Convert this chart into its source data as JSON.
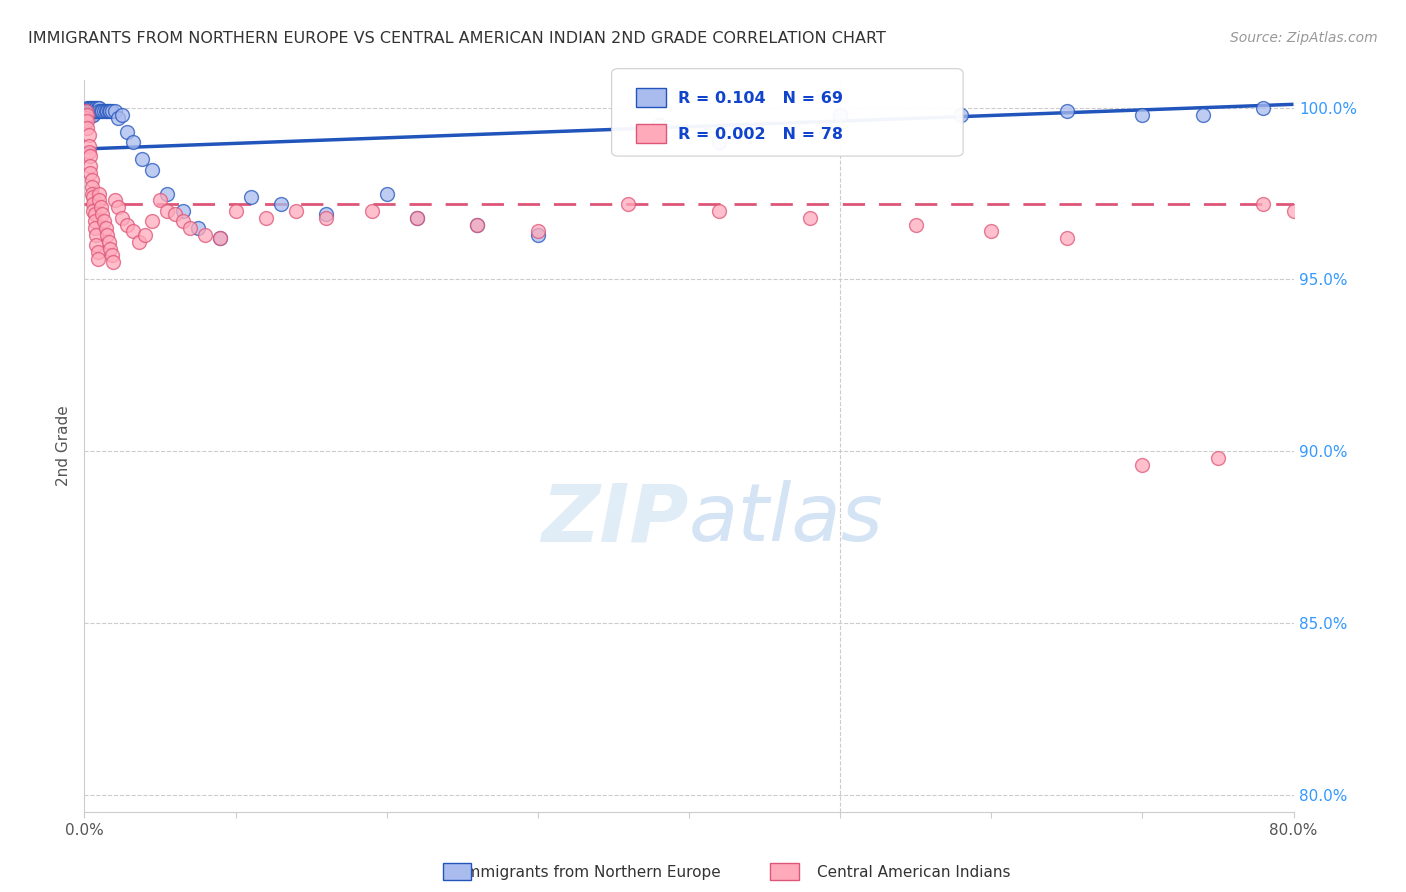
{
  "title": "IMMIGRANTS FROM NORTHERN EUROPE VS CENTRAL AMERICAN INDIAN 2ND GRADE CORRELATION CHART",
  "source": "Source: ZipAtlas.com",
  "ylabel": "2nd Grade",
  "legend_label1": "Immigrants from Northern Europe",
  "legend_label2": "Central American Indians",
  "R1": 0.104,
  "N1": 69,
  "R2": 0.002,
  "N2": 78,
  "color1": "#aabbee",
  "color2": "#ffaabb",
  "trendline1_color": "#2255bb",
  "trendline2_color": "#dd5577",
  "xlim": [
    0.0,
    0.8
  ],
  "ylim": [
    0.795,
    1.008
  ],
  "xticks": [
    0.0,
    0.1,
    0.2,
    0.3,
    0.4,
    0.5,
    0.6,
    0.7,
    0.8
  ],
  "yticks": [
    0.8,
    0.85,
    0.9,
    0.95,
    1.0
  ],
  "ytick_labels": [
    "80.0%",
    "85.0%",
    "90.0%",
    "95.0%",
    "100.0%"
  ],
  "xtick_labels": [
    "0.0%",
    "",
    "",
    "",
    "",
    "",
    "",
    "",
    "80.0%"
  ],
  "blue_trend_x0": 0.0,
  "blue_trend_y0": 0.988,
  "blue_trend_x1": 0.8,
  "blue_trend_y1": 1.001,
  "pink_trend_x0": 0.0,
  "pink_trend_y0": 0.972,
  "pink_trend_x1": 0.8,
  "pink_trend_y1": 0.972,
  "blue_x": [
    0.001,
    0.001,
    0.002,
    0.002,
    0.002,
    0.003,
    0.003,
    0.003,
    0.004,
    0.004,
    0.004,
    0.005,
    0.005,
    0.005,
    0.006,
    0.006,
    0.006,
    0.007,
    0.007,
    0.008,
    0.008,
    0.009,
    0.009,
    0.01,
    0.01,
    0.011,
    0.012,
    0.013,
    0.014,
    0.015,
    0.016,
    0.017,
    0.018,
    0.02,
    0.022,
    0.025,
    0.028,
    0.032,
    0.038,
    0.045,
    0.055,
    0.065,
    0.075,
    0.09,
    0.11,
    0.13,
    0.16,
    0.2,
    0.22,
    0.26,
    0.3,
    0.38,
    0.42,
    0.5,
    0.58,
    0.65,
    0.7,
    0.74,
    0.78
  ],
  "blue_y": [
    0.999,
    0.998,
    1.0,
    0.999,
    0.998,
    1.0,
    0.999,
    0.998,
    1.0,
    0.999,
    0.998,
    1.0,
    0.999,
    0.998,
    1.0,
    0.999,
    0.998,
    1.0,
    0.999,
    1.0,
    0.999,
    1.0,
    0.999,
    1.0,
    0.999,
    0.999,
    0.999,
    0.999,
    0.999,
    0.999,
    0.999,
    0.999,
    0.999,
    0.999,
    0.997,
    0.998,
    0.993,
    0.99,
    0.985,
    0.982,
    0.975,
    0.97,
    0.965,
    0.962,
    0.974,
    0.972,
    0.969,
    0.975,
    0.968,
    0.966,
    0.963,
    0.995,
    0.99,
    0.998,
    0.998,
    0.999,
    0.998,
    0.998,
    1.0
  ],
  "pink_x": [
    0.001,
    0.001,
    0.002,
    0.002,
    0.002,
    0.003,
    0.003,
    0.003,
    0.004,
    0.004,
    0.004,
    0.005,
    0.005,
    0.005,
    0.006,
    0.006,
    0.006,
    0.007,
    0.007,
    0.007,
    0.008,
    0.008,
    0.009,
    0.009,
    0.01,
    0.01,
    0.011,
    0.012,
    0.013,
    0.014,
    0.015,
    0.016,
    0.017,
    0.018,
    0.019,
    0.02,
    0.022,
    0.025,
    0.028,
    0.032,
    0.036,
    0.04,
    0.045,
    0.05,
    0.055,
    0.06,
    0.065,
    0.07,
    0.08,
    0.09,
    0.1,
    0.12,
    0.14,
    0.16,
    0.19,
    0.22,
    0.26,
    0.3,
    0.36,
    0.42,
    0.48,
    0.55,
    0.6,
    0.65,
    0.7,
    0.75,
    0.78,
    0.8
  ],
  "pink_y": [
    0.999,
    0.997,
    0.998,
    0.996,
    0.994,
    0.992,
    0.989,
    0.987,
    0.986,
    0.983,
    0.981,
    0.979,
    0.977,
    0.975,
    0.974,
    0.972,
    0.97,
    0.969,
    0.967,
    0.965,
    0.963,
    0.96,
    0.958,
    0.956,
    0.975,
    0.973,
    0.971,
    0.969,
    0.967,
    0.965,
    0.963,
    0.961,
    0.959,
    0.957,
    0.955,
    0.973,
    0.971,
    0.968,
    0.966,
    0.964,
    0.961,
    0.963,
    0.967,
    0.973,
    0.97,
    0.969,
    0.967,
    0.965,
    0.963,
    0.962,
    0.97,
    0.968,
    0.97,
    0.968,
    0.97,
    0.968,
    0.966,
    0.964,
    0.972,
    0.97,
    0.968,
    0.966,
    0.964,
    0.962,
    0.896,
    0.898,
    0.972,
    0.97
  ]
}
